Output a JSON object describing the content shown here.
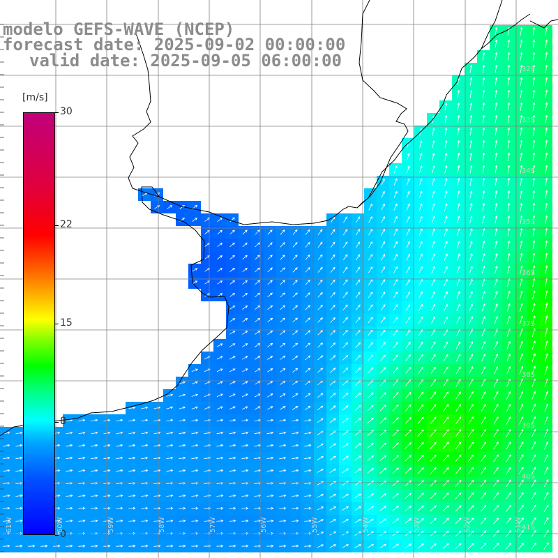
{
  "header": {
    "model_line": "modelo GEFS-WAVE (NCEP)",
    "forecast_line": "forecast date: 2025-09-02 00:00:00",
    "valid_line": "valid date: 2025-09-05 06:00:00"
  },
  "colorbar": {
    "unit": "[m/s]",
    "ticks": [
      "30",
      "22",
      "15",
      "8",
      "0"
    ],
    "tick_values": [
      30,
      22,
      15,
      8,
      0
    ],
    "min": 0,
    "max": 30,
    "colors": [
      "#0000ff",
      "#0050ff",
      "#00a8ff",
      "#00ffff",
      "#00ff80",
      "#00ff00",
      "#80ff00",
      "#ffff00",
      "#ffa000",
      "#ff6000",
      "#ff0000",
      "#e00040",
      "#c0007a"
    ]
  },
  "map": {
    "lat_labels": [
      "32S",
      "33S",
      "34S",
      "35S",
      "36S",
      "37S",
      "38S",
      "39S",
      "40S",
      "41S"
    ],
    "lon_labels": [
      "61W",
      "60W",
      "59W",
      "58W",
      "57W",
      "56W",
      "55W",
      "54W",
      "53W",
      "52W",
      "51W"
    ],
    "ocean_color": "#2ecbe6",
    "land_color": "#ffffff",
    "grid_color": "#808080",
    "coast_color": "#000000",
    "vector_color": "#ffffff"
  }
}
